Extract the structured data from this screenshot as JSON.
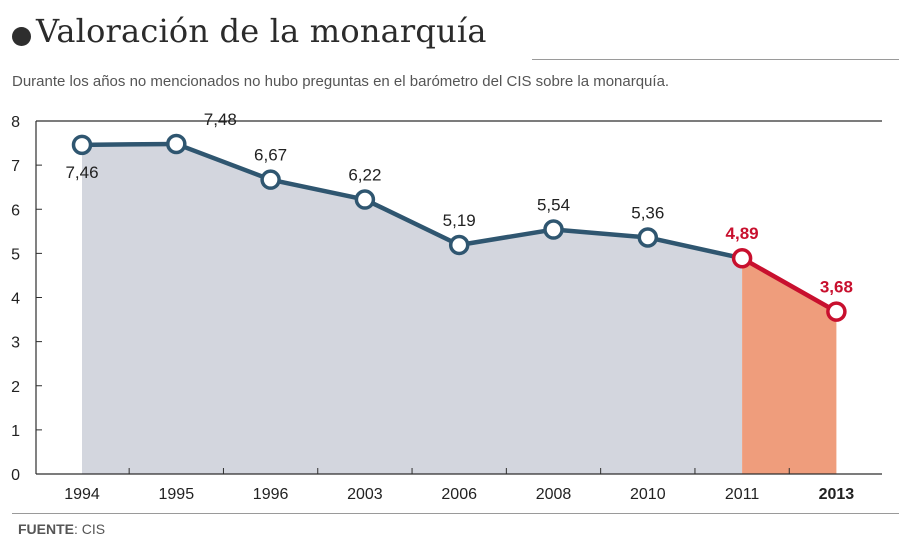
{
  "header": {
    "title": "Valoración de la monarquía",
    "subtitle": "Durante los años no mencionados no hubo preguntas en el barómetro del CIS sobre la monarquía."
  },
  "footer": {
    "source_label": "FUENTE",
    "source_value": ": CIS"
  },
  "colors": {
    "line_main": "#2f5670",
    "line_recent": "#c8102e",
    "area_main": "#d3d6de",
    "area_recent": "#ef9d7c",
    "frame": "#2e2e2e",
    "label_main": "#222222",
    "label_recent": "#c8102e"
  },
  "chart_data": {
    "type": "line",
    "categories": [
      "1994",
      "1995",
      "1996",
      "2003",
      "2006",
      "2008",
      "2010",
      "2011",
      "2013"
    ],
    "values": [
      7.46,
      7.48,
      6.67,
      6.22,
      5.19,
      5.54,
      5.36,
      4.89,
      3.68
    ],
    "data_labels": [
      "7,46",
      "7,48",
      "6,67",
      "6,22",
      "5,19",
      "5,54",
      "5,36",
      "4,89",
      "3,68"
    ],
    "highlight_from_index": 7,
    "bold_category_index": 8,
    "ylim": [
      0,
      8
    ],
    "yticks": [
      "0",
      "1",
      "2",
      "3",
      "4",
      "5",
      "6",
      "7",
      "8"
    ],
    "xlabel": "",
    "ylabel": "",
    "grid": false,
    "legend": "none"
  }
}
